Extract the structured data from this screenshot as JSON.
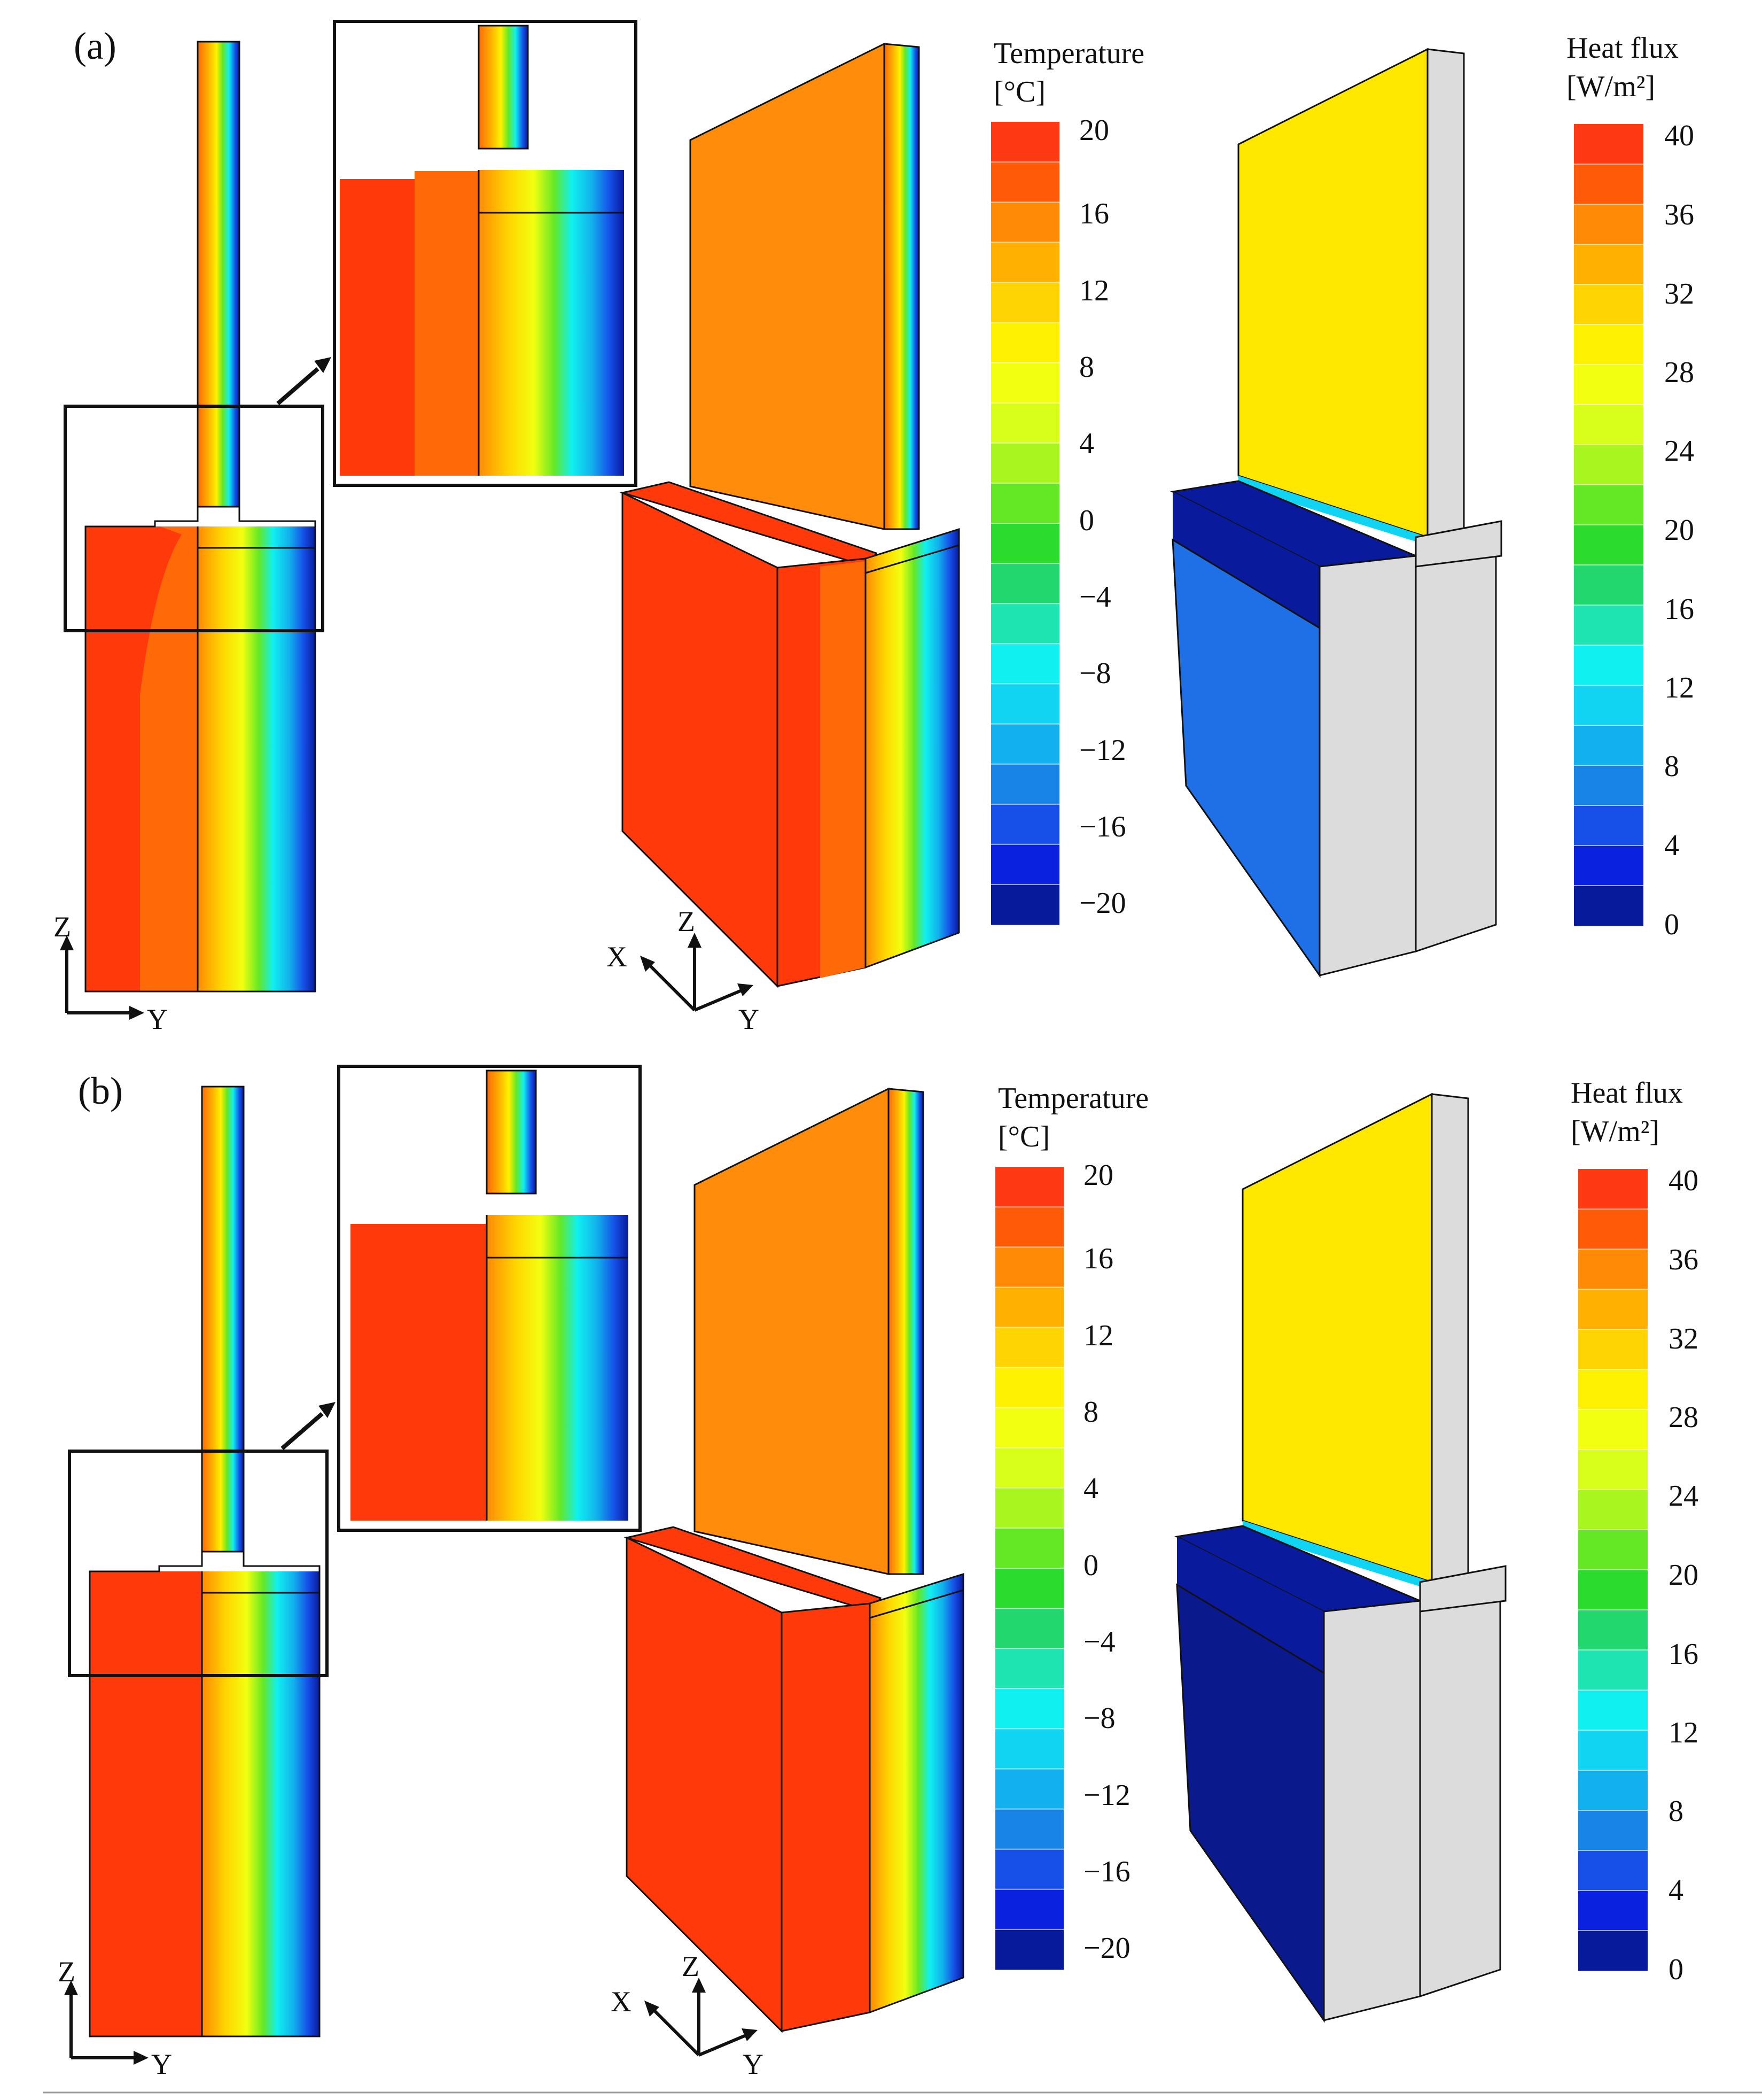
{
  "panels": [
    {
      "label": "(a)",
      "temperature_legend": {
        "title_line1": "Temperature",
        "title_line2": "[°C]",
        "ticks": [
          "20",
          "16",
          "12",
          "8",
          "4",
          "0",
          "−4",
          "−8",
          "−12",
          "−16",
          "−20"
        ]
      },
      "heat_flux_legend": {
        "title_line1": "Heat flux",
        "title_line2": "[W/m²]",
        "ticks": [
          "40",
          "36",
          "32",
          "28",
          "24",
          "20",
          "16",
          "12",
          "8",
          "4",
          "0"
        ]
      },
      "axes_2d": {
        "vertical": "Z",
        "horizontal": "Y"
      },
      "axes_3d": {
        "x": "X",
        "z": "Z",
        "y": "Y"
      },
      "foundation_heat_flux_color": "#1f6fe6"
    },
    {
      "label": "(b)",
      "temperature_legend": {
        "title_line1": "Temperature",
        "title_line2": "[°C]",
        "ticks": [
          "20",
          "16",
          "12",
          "8",
          "4",
          "0",
          "−4",
          "−8",
          "−12",
          "−16",
          "−20"
        ]
      },
      "heat_flux_legend": {
        "title_line1": "Heat flux",
        "title_line2": "[W/m²]",
        "ticks": [
          "40",
          "36",
          "32",
          "28",
          "24",
          "20",
          "16",
          "12",
          "8",
          "4",
          "0"
        ]
      },
      "axes_2d": {
        "vertical": "Z",
        "horizontal": "Y"
      },
      "axes_3d": {
        "x": "X",
        "z": "Z",
        "y": "Y"
      },
      "foundation_heat_flux_color": "#0a1a8c"
    }
  ],
  "colors": {
    "legend_bands_top_to_bottom": [
      "#ff3a12",
      "#ff5a08",
      "#ff8a05",
      "#ffb000",
      "#ffd400",
      "#fff200",
      "#f2ff10",
      "#d8ff1a",
      "#a8f520",
      "#64e826",
      "#2bdc2c",
      "#22d86e",
      "#1de4b0",
      "#10f0f0",
      "#10d4f2",
      "#12b0ec",
      "#1884e6",
      "#1650e8",
      "#0a22e0",
      "#081a9c"
    ],
    "warm_red": "#ff3a0a",
    "orange": "#ff6a08",
    "upper_wall_orange": "#ff8c0a",
    "heat_flux_wall_yellow": "#ffe800",
    "heat_flux_foundation_top": "#0a1a9c",
    "heat_flux_grey": "#dcdcdc",
    "outline": "#111111"
  }
}
